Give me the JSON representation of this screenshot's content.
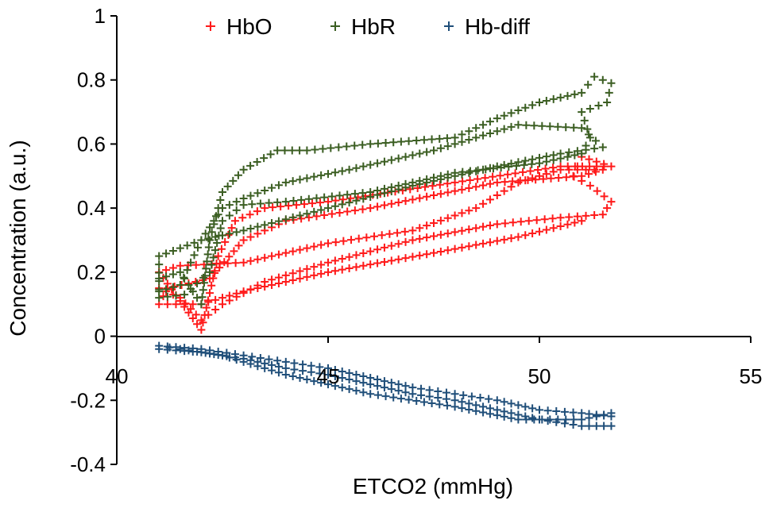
{
  "chart_data": {
    "type": "scatter",
    "title": "",
    "xlabel": "ETCO2 (mmHg)",
    "ylabel": "Concentration (a.u.)",
    "xlim": [
      40,
      55
    ],
    "ylim": [
      -0.4,
      1
    ],
    "xticks": [
      "40",
      "45",
      "50",
      "55"
    ],
    "yticks": [
      "-0.4",
      "-0.2",
      "0",
      "0.2",
      "0.4",
      "0.6",
      "0.8",
      "1"
    ],
    "xtick_values": [
      40,
      45,
      50,
      55
    ],
    "ytick_values": [
      -0.4,
      -0.2,
      0,
      0.2,
      0.4,
      0.6,
      0.8,
      1
    ],
    "grid": false,
    "legend_position": "top",
    "marker": "plus",
    "series": [
      {
        "name": "HbO",
        "color": "#ff1a1a",
        "points": [
          [
            41.0,
            0.15
          ],
          [
            41.5,
            0.12
          ],
          [
            42.0,
            0.05
          ],
          [
            42.5,
            0.1
          ],
          [
            43.5,
            0.17
          ],
          [
            45.0,
            0.23
          ],
          [
            47.0,
            0.3
          ],
          [
            49.0,
            0.35
          ],
          [
            50.5,
            0.37
          ],
          [
            51.5,
            0.38
          ],
          [
            51.7,
            0.42
          ],
          [
            51.2,
            0.47
          ],
          [
            50.8,
            0.5
          ],
          [
            51.0,
            0.56
          ],
          [
            51.7,
            0.53
          ],
          [
            50.5,
            0.53
          ],
          [
            48.0,
            0.48
          ],
          [
            45.0,
            0.42
          ],
          [
            43.5,
            0.4
          ],
          [
            42.8,
            0.36
          ],
          [
            42.4,
            0.25
          ],
          [
            42.0,
            0.02
          ],
          [
            41.0,
            0.2
          ],
          [
            41.5,
            0.22
          ],
          [
            43.0,
            0.23
          ],
          [
            45.0,
            0.29
          ],
          [
            47.0,
            0.33
          ],
          [
            48.5,
            0.4
          ],
          [
            49.5,
            0.48
          ],
          [
            50.5,
            0.52
          ],
          [
            51.5,
            0.52
          ],
          [
            51.0,
            0.5
          ],
          [
            49.0,
            0.48
          ],
          [
            46.0,
            0.4
          ],
          [
            44.0,
            0.36
          ],
          [
            43.0,
            0.3
          ],
          [
            42.2,
            0.18
          ],
          [
            41.2,
            0.15
          ],
          [
            41.0,
            0.1
          ],
          [
            42.0,
            0.1
          ],
          [
            43.0,
            0.14
          ],
          [
            45.0,
            0.2
          ],
          [
            47.5,
            0.26
          ],
          [
            49.5,
            0.31
          ],
          [
            51.0,
            0.36
          ]
        ]
      },
      {
        "name": "HbR",
        "color": "#3b5e22",
        "points": [
          [
            41.0,
            0.18
          ],
          [
            41.5,
            0.2
          ],
          [
            42.0,
            0.1
          ],
          [
            42.2,
            0.3
          ],
          [
            42.5,
            0.45
          ],
          [
            43.0,
            0.52
          ],
          [
            43.8,
            0.58
          ],
          [
            44.5,
            0.58
          ],
          [
            46.0,
            0.6
          ],
          [
            48.0,
            0.62
          ],
          [
            49.0,
            0.68
          ],
          [
            50.0,
            0.73
          ],
          [
            51.0,
            0.76
          ],
          [
            51.3,
            0.81
          ],
          [
            51.7,
            0.79
          ],
          [
            51.6,
            0.73
          ],
          [
            51.0,
            0.7
          ],
          [
            51.2,
            0.62
          ],
          [
            51.0,
            0.57
          ],
          [
            50.0,
            0.54
          ],
          [
            48.0,
            0.51
          ],
          [
            46.0,
            0.45
          ],
          [
            44.0,
            0.42
          ],
          [
            43.0,
            0.41
          ],
          [
            42.5,
            0.36
          ],
          [
            42.2,
            0.2
          ],
          [
            41.6,
            0.13
          ],
          [
            41.0,
            0.12
          ],
          [
            41.0,
            0.25
          ],
          [
            42.0,
            0.3
          ],
          [
            43.0,
            0.33
          ],
          [
            45.0,
            0.4
          ],
          [
            47.0,
            0.47
          ],
          [
            49.0,
            0.53
          ],
          [
            50.5,
            0.57
          ],
          [
            51.5,
            0.59
          ],
          [
            51.0,
            0.65
          ],
          [
            49.5,
            0.66
          ],
          [
            47.5,
            0.58
          ],
          [
            45.5,
            0.52
          ],
          [
            44.0,
            0.48
          ],
          [
            43.0,
            0.43
          ],
          [
            42.5,
            0.4
          ],
          [
            42.0,
            0.3
          ],
          [
            41.5,
            0.16
          ],
          [
            41.0,
            0.14
          ]
        ]
      },
      {
        "name": "Hb-diff",
        "color": "#1f4e79",
        "points": [
          [
            41.0,
            -0.04
          ],
          [
            42.0,
            -0.05
          ],
          [
            43.0,
            -0.07
          ],
          [
            44.0,
            -0.1
          ],
          [
            45.0,
            -0.12
          ],
          [
            46.0,
            -0.15
          ],
          [
            47.0,
            -0.18
          ],
          [
            48.0,
            -0.2
          ],
          [
            49.0,
            -0.23
          ],
          [
            50.0,
            -0.26
          ],
          [
            51.0,
            -0.28
          ],
          [
            51.7,
            -0.28
          ],
          [
            51.7,
            -0.25
          ],
          [
            51.0,
            -0.24
          ],
          [
            50.0,
            -0.23
          ],
          [
            49.0,
            -0.2
          ],
          [
            48.0,
            -0.18
          ],
          [
            47.0,
            -0.16
          ],
          [
            46.0,
            -0.13
          ],
          [
            45.0,
            -0.1
          ],
          [
            44.0,
            -0.08
          ],
          [
            43.0,
            -0.06
          ],
          [
            42.0,
            -0.04
          ],
          [
            41.0,
            -0.03
          ],
          [
            41.5,
            -0.04
          ],
          [
            42.5,
            -0.06
          ],
          [
            44.0,
            -0.12
          ],
          [
            46.0,
            -0.18
          ],
          [
            48.0,
            -0.22
          ],
          [
            49.5,
            -0.26
          ],
          [
            51.0,
            -0.26
          ],
          [
            51.7,
            -0.24
          ]
        ]
      }
    ]
  }
}
